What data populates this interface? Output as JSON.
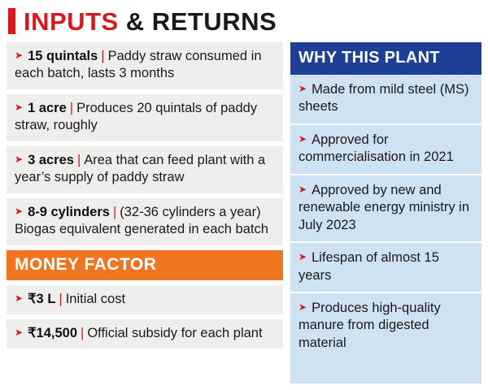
{
  "separator": "|",
  "icons": {
    "bullet": "➤"
  },
  "title": {
    "red": "INPUTS",
    "dark": " & RETURNS"
  },
  "left": {
    "items": [
      {
        "lead": "15 quintals",
        "text": "Paddy straw consumed in each batch, lasts 3 months"
      },
      {
        "lead": "1 acre",
        "text": "Produces 20 quintals of paddy straw, roughly"
      },
      {
        "lead": "3 acres",
        "text": "Area that can feed plant with a year’s supply of paddy straw"
      },
      {
        "lead": "8-9 cylinders",
        "text": "(32-36 cylinders a year) Biogas equivalent generated in each batch"
      }
    ],
    "money_header": "MONEY FACTOR",
    "money_items": [
      {
        "lead": "₹3 L",
        "text": "Initial cost"
      },
      {
        "lead": "₹14,500",
        "text": "Official subsidy for each plant"
      }
    ]
  },
  "right": {
    "header": "WHY THIS PLANT",
    "items": [
      "Made from mild steel (MS) sheets",
      "Approved for commercialisation in 2021",
      "Approved by new and renewable energy ministry in July 2023",
      "Lifespan of almost 15 years",
      "Produces high-quality manure from digested material"
    ]
  },
  "colors": {
    "red": "#d71920",
    "orange": "#ee7623",
    "blue": "#1e3f96",
    "lightblue": "#cfe2f2",
    "panel": "#efeeec",
    "ink": "#1a1a1a"
  }
}
